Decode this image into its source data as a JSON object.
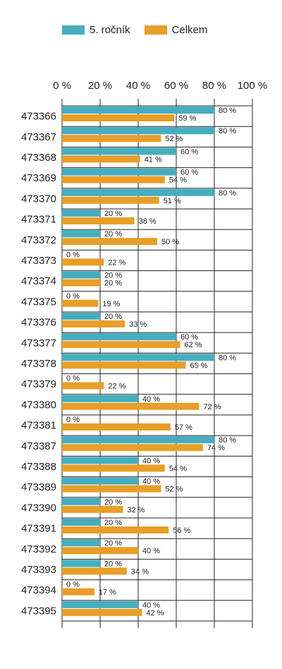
{
  "chart_data": {
    "type": "bar",
    "orientation": "horizontal",
    "legend_position": "top",
    "grid": true,
    "xlim": [
      0,
      100
    ],
    "x_ticks": [
      "0 %",
      "20 %",
      "40 %",
      "60 %",
      "80 %",
      "100 %"
    ],
    "categories": [
      "473366",
      "473367",
      "473368",
      "473369",
      "473370",
      "473371",
      "473372",
      "473373",
      "473374",
      "473375",
      "473376",
      "473377",
      "473378",
      "473379",
      "473380",
      "473381",
      "473387",
      "473388",
      "473389",
      "473390",
      "473391",
      "473392",
      "473393",
      "473394",
      "473395"
    ],
    "series": [
      {
        "name": "5. ročník",
        "color": "#45aebf",
        "values": [
          80,
          80,
          60,
          60,
          80,
          20,
          20,
          0,
          20,
          0,
          20,
          60,
          80,
          0,
          40,
          0,
          80,
          40,
          40,
          20,
          20,
          20,
          20,
          0,
          40
        ]
      },
      {
        "name": "Celkem",
        "color": "#e89e27",
        "values": [
          59,
          52,
          41,
          54,
          51,
          38,
          50,
          22,
          20,
          19,
          33,
          62,
          65,
          22,
          72,
          57,
          74,
          54,
          52,
          32,
          56,
          40,
          34,
          17,
          42
        ]
      }
    ],
    "value_suffix": " %"
  }
}
